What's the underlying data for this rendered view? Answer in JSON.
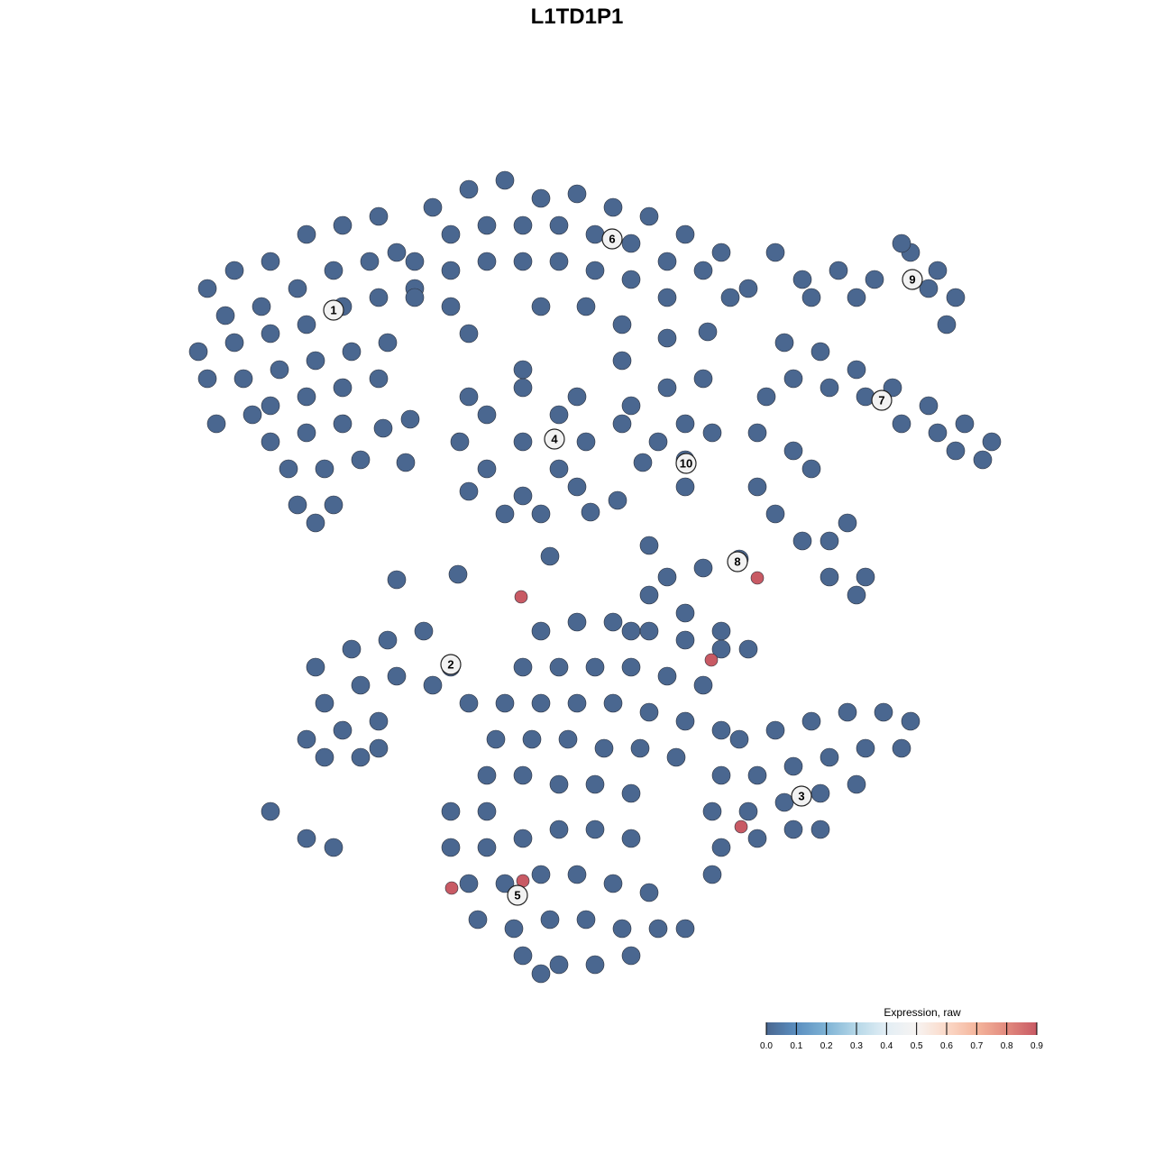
{
  "chart_data": {
    "type": "scatter",
    "title": "L1TD1P1",
    "xlabel": "",
    "ylabel": "",
    "grid": false,
    "axes_visible": false,
    "xlim": [
      -48,
      52
    ],
    "ylim": [
      -52,
      48
    ],
    "colors": {
      "low": "#4a6790",
      "high": "#c85a64",
      "outline": "#2a2f3a"
    },
    "legend": {
      "title": "Expression, raw",
      "placement": "bottom-right",
      "ticks": [
        "0.0",
        "0.1",
        "0.2",
        "0.3",
        "0.4",
        "0.5",
        "0.6",
        "0.7",
        "0.8",
        "0.9"
      ],
      "range": [
        0,
        0.9
      ],
      "stops": [
        "#4a6790",
        "#5b8fc0",
        "#7fb3d5",
        "#b6d8e8",
        "#e3eef5",
        "#f7f4f2",
        "#fbd9c8",
        "#f4b59c",
        "#e28a7e",
        "#c85a64"
      ]
    },
    "cluster_labels": [
      {
        "label": "1",
        "x": -27,
        "y": 29.6
      },
      {
        "label": "2",
        "x": -14,
        "y": -9.7
      },
      {
        "label": "3",
        "x": 24.9,
        "y": -24.3
      },
      {
        "label": "4",
        "x": -2.5,
        "y": 15.3
      },
      {
        "label": "5",
        "x": -6.6,
        "y": -35.3
      },
      {
        "label": "6",
        "x": 3.9,
        "y": 37.5
      },
      {
        "label": "7",
        "x": 33.8,
        "y": 19.6
      },
      {
        "label": "8",
        "x": 17.8,
        "y": 1.7
      },
      {
        "label": "9",
        "x": 37.2,
        "y": 33
      },
      {
        "label": "10",
        "x": 12.1,
        "y": 12.6
      }
    ],
    "points": [
      [
        -41,
        32,
        0
      ],
      [
        -38,
        34,
        0
      ],
      [
        -34,
        35,
        0
      ],
      [
        -30,
        38,
        0
      ],
      [
        -26,
        39,
        0
      ],
      [
        -22,
        40,
        0
      ],
      [
        -39,
        29,
        0
      ],
      [
        -35,
        30,
        0
      ],
      [
        -31,
        32,
        0
      ],
      [
        -27,
        34,
        0
      ],
      [
        -23,
        35,
        0
      ],
      [
        -20,
        36,
        0
      ],
      [
        -42,
        25,
        0
      ],
      [
        -38,
        26,
        0
      ],
      [
        -34,
        27,
        0
      ],
      [
        -30,
        28,
        0
      ],
      [
        -26,
        30,
        0
      ],
      [
        -22,
        31,
        0
      ],
      [
        -18,
        32,
        0
      ],
      [
        -41,
        22,
        0
      ],
      [
        -37,
        22,
        0
      ],
      [
        -33,
        23,
        0
      ],
      [
        -29,
        24,
        0
      ],
      [
        -25,
        25,
        0
      ],
      [
        -21,
        26,
        0
      ],
      [
        -34,
        19,
        0
      ],
      [
        -30,
        20,
        0
      ],
      [
        -26,
        21,
        0
      ],
      [
        -22,
        22,
        0
      ],
      [
        -34,
        15,
        0
      ],
      [
        -30,
        16,
        0
      ],
      [
        -26,
        17,
        0
      ],
      [
        -32,
        12,
        0
      ],
      [
        -28,
        12,
        0
      ],
      [
        -24,
        13,
        0
      ],
      [
        -31,
        8,
        0
      ],
      [
        -27,
        8,
        0
      ],
      [
        -29,
        6,
        0
      ],
      [
        -40,
        17,
        0
      ],
      [
        -36,
        18,
        0
      ],
      [
        -16,
        41,
        0
      ],
      [
        -12,
        43,
        0
      ],
      [
        -8,
        44,
        0
      ],
      [
        -4,
        42,
        0
      ],
      [
        0,
        42.5,
        0
      ],
      [
        4,
        41,
        0
      ],
      [
        8,
        40,
        0
      ],
      [
        12,
        38,
        0
      ],
      [
        16,
        36,
        0
      ],
      [
        19,
        32,
        0
      ],
      [
        -14,
        38,
        0
      ],
      [
        -10,
        39,
        0
      ],
      [
        -6,
        39,
        0
      ],
      [
        -2,
        39,
        0
      ],
      [
        2,
        38,
        0
      ],
      [
        6,
        37,
        0
      ],
      [
        10,
        35,
        0
      ],
      [
        14,
        34,
        0
      ],
      [
        17,
        31,
        0
      ],
      [
        -18,
        35,
        0
      ],
      [
        -14,
        34,
        0
      ],
      [
        -10,
        35,
        0
      ],
      [
        -6,
        35,
        0
      ],
      [
        -2,
        35,
        0
      ],
      [
        2,
        34,
        0
      ],
      [
        6,
        33,
        0
      ],
      [
        -18,
        31,
        0
      ],
      [
        -14,
        30,
        0
      ],
      [
        -12,
        27,
        0
      ],
      [
        5,
        28,
        0
      ],
      [
        5,
        24,
        0
      ],
      [
        -4,
        30,
        0
      ],
      [
        1,
        30,
        0
      ],
      [
        10,
        31,
        0
      ],
      [
        -6,
        15,
        0
      ],
      [
        -10,
        18,
        0
      ],
      [
        -2,
        18,
        0
      ],
      [
        -10,
        12,
        0
      ],
      [
        -2,
        12,
        0
      ],
      [
        -6,
        21,
        0
      ],
      [
        -6,
        9,
        0
      ],
      [
        -13,
        15,
        0
      ],
      [
        1,
        15,
        0
      ],
      [
        -12,
        20,
        0
      ],
      [
        0,
        20,
        0
      ],
      [
        -12,
        9.5,
        0
      ],
      [
        0,
        10,
        0
      ],
      [
        -8,
        7,
        0
      ],
      [
        -4,
        7,
        0
      ],
      [
        -6,
        23,
        0
      ],
      [
        6,
        19,
        0
      ],
      [
        10,
        21,
        0
      ],
      [
        14,
        22,
        0
      ],
      [
        12,
        17,
        0
      ],
      [
        12,
        13,
        0
      ],
      [
        12,
        10,
        0
      ],
      [
        15,
        16,
        0
      ],
      [
        9,
        15,
        0
      ],
      [
        5,
        17,
        0
      ],
      [
        23,
        26,
        0
      ],
      [
        27,
        25,
        0
      ],
      [
        31,
        23,
        0
      ],
      [
        35,
        21,
        0
      ],
      [
        39,
        19,
        0
      ],
      [
        43,
        17,
        0
      ],
      [
        46,
        15,
        0
      ],
      [
        40,
        16,
        0
      ],
      [
        36,
        17,
        0
      ],
      [
        24,
        22,
        0
      ],
      [
        28,
        21,
        0
      ],
      [
        32,
        20,
        0
      ],
      [
        21,
        20,
        0
      ],
      [
        42,
        14,
        0
      ],
      [
        45,
        13,
        0
      ],
      [
        25,
        33,
        0
      ],
      [
        29,
        34,
        0
      ],
      [
        33,
        33,
        0
      ],
      [
        37,
        36,
        0
      ],
      [
        40,
        34,
        0
      ],
      [
        42,
        31,
        0
      ],
      [
        39,
        32,
        0
      ],
      [
        26,
        31,
        0
      ],
      [
        31,
        31,
        0
      ],
      [
        41,
        28,
        0
      ],
      [
        36,
        37,
        0
      ],
      [
        20,
        16,
        0
      ],
      [
        24,
        14,
        0
      ],
      [
        20,
        10,
        0
      ],
      [
        22,
        7,
        0
      ],
      [
        25,
        4,
        0
      ],
      [
        28,
        0,
        0
      ],
      [
        31,
        -2,
        0
      ],
      [
        30,
        6,
        0
      ],
      [
        26,
        12,
        0
      ],
      [
        18,
        2,
        0
      ],
      [
        14,
        1,
        0
      ],
      [
        10,
        0,
        0
      ],
      [
        8,
        -2,
        0
      ],
      [
        6,
        -6,
        0
      ],
      [
        12,
        -4,
        0
      ],
      [
        16,
        -6,
        0
      ],
      [
        19,
        -8,
        0
      ],
      [
        28,
        4,
        0
      ],
      [
        32,
        0,
        0
      ],
      [
        -29,
        -10,
        0
      ],
      [
        -25,
        -8,
        0
      ],
      [
        -21,
        -7,
        0
      ],
      [
        -17,
        -6,
        0
      ],
      [
        -14,
        -10,
        0
      ],
      [
        -28,
        -14,
        0
      ],
      [
        -24,
        -12,
        0
      ],
      [
        -20,
        -11,
        0
      ],
      [
        -16,
        -12,
        0
      ],
      [
        -12,
        -14,
        0
      ],
      [
        -30,
        -18,
        0
      ],
      [
        -26,
        -17,
        0
      ],
      [
        -22,
        -16,
        0
      ],
      [
        -28,
        -20,
        0
      ],
      [
        -24,
        -20,
        0
      ],
      [
        -34,
        -26,
        0
      ],
      [
        -30,
        -29,
        0
      ],
      [
        -27,
        -30,
        0
      ],
      [
        -22,
        -19,
        0
      ],
      [
        -4,
        -6,
        0
      ],
      [
        0,
        -5,
        0
      ],
      [
        4,
        -5,
        0
      ],
      [
        8,
        -6,
        0
      ],
      [
        12,
        -7,
        0
      ],
      [
        16,
        -8,
        0
      ],
      [
        -6,
        -10,
        0
      ],
      [
        -2,
        -10,
        0
      ],
      [
        2,
        -10,
        0
      ],
      [
        6,
        -10,
        0
      ],
      [
        10,
        -11,
        0
      ],
      [
        14,
        -12,
        0
      ],
      [
        -8,
        -14,
        0
      ],
      [
        -4,
        -14,
        0
      ],
      [
        0,
        -14,
        0
      ],
      [
        4,
        -14,
        0
      ],
      [
        8,
        -15,
        0
      ],
      [
        12,
        -16,
        0
      ],
      [
        16,
        -17,
        0
      ],
      [
        -9,
        -18,
        0
      ],
      [
        -5,
        -18,
        0
      ],
      [
        -1,
        -18,
        0
      ],
      [
        3,
        -19,
        0
      ],
      [
        7,
        -19,
        0
      ],
      [
        11,
        -20,
        0
      ],
      [
        -10,
        -22,
        0
      ],
      [
        -6,
        -22,
        0
      ],
      [
        -2,
        -23,
        0
      ],
      [
        2,
        -23,
        0
      ],
      [
        6,
        -24,
        0
      ],
      [
        18,
        -18,
        0
      ],
      [
        22,
        -17,
        0
      ],
      [
        26,
        -16,
        0
      ],
      [
        30,
        -15,
        0
      ],
      [
        34,
        -15,
        0
      ],
      [
        37,
        -16,
        0
      ],
      [
        16,
        -22,
        0
      ],
      [
        20,
        -22,
        0
      ],
      [
        24,
        -21,
        0
      ],
      [
        28,
        -20,
        0
      ],
      [
        32,
        -19,
        0
      ],
      [
        36,
        -19,
        0
      ],
      [
        15,
        -26,
        0
      ],
      [
        19,
        -26,
        0
      ],
      [
        23,
        -25,
        0
      ],
      [
        27,
        -24,
        0
      ],
      [
        31,
        -23,
        0
      ],
      [
        16,
        -30,
        0
      ],
      [
        20,
        -29,
        0
      ],
      [
        24,
        -28,
        0
      ],
      [
        27,
        -28,
        0
      ],
      [
        15,
        -33,
        0
      ],
      [
        -14,
        -26,
        0
      ],
      [
        -10,
        -26,
        0
      ],
      [
        -14,
        -30,
        0
      ],
      [
        -10,
        -30,
        0
      ],
      [
        -6,
        -29,
        0
      ],
      [
        -2,
        -28,
        0
      ],
      [
        2,
        -28,
        0
      ],
      [
        6,
        -29,
        0
      ],
      [
        -12,
        -34,
        0
      ],
      [
        -8,
        -34,
        0
      ],
      [
        -4,
        -33,
        0
      ],
      [
        0,
        -33,
        0
      ],
      [
        4,
        -34,
        0
      ],
      [
        8,
        -35,
        0
      ],
      [
        -11,
        -38,
        0
      ],
      [
        -7,
        -39,
        0
      ],
      [
        -3,
        -38,
        0
      ],
      [
        1,
        -38,
        0
      ],
      [
        5,
        -39,
        0
      ],
      [
        9,
        -39,
        0
      ],
      [
        -6,
        -42,
        0
      ],
      [
        -2,
        -43,
        0
      ],
      [
        2,
        -43,
        0
      ],
      [
        6,
        -42,
        0
      ],
      [
        -4,
        -44,
        0
      ],
      [
        12,
        -39,
        0
      ],
      [
        -20,
        -0.3,
        0
      ],
      [
        -13.2,
        0.3,
        0
      ],
      [
        -3,
        2.3,
        0
      ],
      [
        4.5,
        8.5,
        0
      ],
      [
        1.5,
        7.2,
        0
      ],
      [
        8,
        3.5,
        0
      ],
      [
        -18.5,
        17.5,
        0
      ],
      [
        -21.5,
        16.5,
        0
      ],
      [
        -19,
        12.7,
        0
      ],
      [
        7.3,
        12.7,
        0
      ],
      [
        10,
        26.5,
        0
      ],
      [
        14.5,
        27.2,
        0
      ],
      [
        22,
        36,
        0
      ],
      [
        -6.2,
        -2.2,
        0.9
      ],
      [
        20,
        -0.1,
        0.9
      ],
      [
        14.9,
        -9.2,
        0.9
      ],
      [
        18.2,
        -27.7,
        0.9
      ],
      [
        -6,
        -33.7,
        0.9
      ],
      [
        -13.9,
        -34.5,
        0.9
      ]
    ]
  }
}
